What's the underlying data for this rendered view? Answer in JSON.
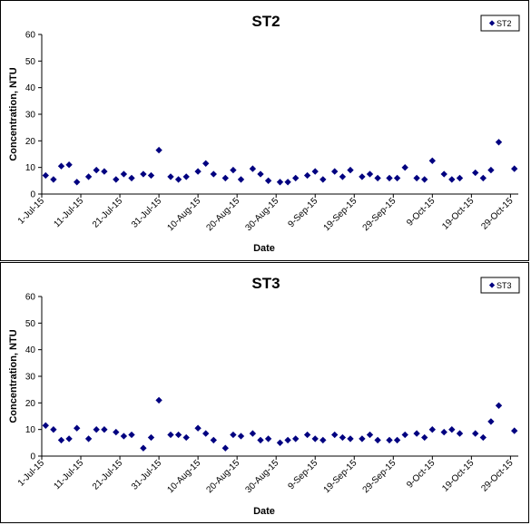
{
  "chart_data": [
    {
      "type": "scatter",
      "title": "ST2",
      "xlabel": "Date",
      "ylabel": "Concentration, NTU",
      "ylim": [
        0,
        60
      ],
      "yticks": [
        "0",
        "10",
        "20",
        "30",
        "40",
        "50",
        "60"
      ],
      "xlim": [
        "2015-07-01",
        "2015-10-31"
      ],
      "xticks": [
        "1-Jul-15",
        "11-Jul-15",
        "21-Jul-15",
        "31-Jul-15",
        "10-Aug-15",
        "20-Aug-15",
        "30-Aug-15",
        "9-Sep-15",
        "19-Sep-15",
        "29-Sep-15",
        "9-Oct-15",
        "19-Oct-15",
        "29-Oct-15"
      ],
      "grid": false,
      "legend": "top-right",
      "marker_color": "#000080",
      "series": [
        {
          "name": "ST2",
          "points": [
            {
              "x": "2015-07-02",
              "y": 7
            },
            {
              "x": "2015-07-04",
              "y": 5.5
            },
            {
              "x": "2015-07-06",
              "y": 10.5
            },
            {
              "x": "2015-07-08",
              "y": 11
            },
            {
              "x": "2015-07-10",
              "y": 4.5
            },
            {
              "x": "2015-07-13",
              "y": 6.5
            },
            {
              "x": "2015-07-15",
              "y": 9
            },
            {
              "x": "2015-07-17",
              "y": 8.5
            },
            {
              "x": "2015-07-20",
              "y": 5.5
            },
            {
              "x": "2015-07-22",
              "y": 7.5
            },
            {
              "x": "2015-07-24",
              "y": 6
            },
            {
              "x": "2015-07-27",
              "y": 7.5
            },
            {
              "x": "2015-07-29",
              "y": 7
            },
            {
              "x": "2015-07-31",
              "y": 16.5
            },
            {
              "x": "2015-08-03",
              "y": 6.5
            },
            {
              "x": "2015-08-05",
              "y": 5.5
            },
            {
              "x": "2015-08-07",
              "y": 6.5
            },
            {
              "x": "2015-08-10",
              "y": 8.5
            },
            {
              "x": "2015-08-12",
              "y": 11.5
            },
            {
              "x": "2015-08-14",
              "y": 7.5
            },
            {
              "x": "2015-08-17",
              "y": 6
            },
            {
              "x": "2015-08-19",
              "y": 9
            },
            {
              "x": "2015-08-21",
              "y": 5.5
            },
            {
              "x": "2015-08-24",
              "y": 9.5
            },
            {
              "x": "2015-08-26",
              "y": 7.5
            },
            {
              "x": "2015-08-28",
              "y": 5
            },
            {
              "x": "2015-08-31",
              "y": 4.5
            },
            {
              "x": "2015-09-02",
              "y": 4.5
            },
            {
              "x": "2015-09-04",
              "y": 6
            },
            {
              "x": "2015-09-07",
              "y": 7
            },
            {
              "x": "2015-09-09",
              "y": 8.5
            },
            {
              "x": "2015-09-11",
              "y": 5.5
            },
            {
              "x": "2015-09-14",
              "y": 8.5
            },
            {
              "x": "2015-09-16",
              "y": 6.5
            },
            {
              "x": "2015-09-18",
              "y": 9
            },
            {
              "x": "2015-09-21",
              "y": 6.5
            },
            {
              "x": "2015-09-23",
              "y": 7.5
            },
            {
              "x": "2015-09-25",
              "y": 6
            },
            {
              "x": "2015-09-28",
              "y": 6
            },
            {
              "x": "2015-09-30",
              "y": 6
            },
            {
              "x": "2015-10-02",
              "y": 10
            },
            {
              "x": "2015-10-05",
              "y": 6
            },
            {
              "x": "2015-10-07",
              "y": 5.5
            },
            {
              "x": "2015-10-09",
              "y": 12.5
            },
            {
              "x": "2015-10-12",
              "y": 7.5
            },
            {
              "x": "2015-10-14",
              "y": 5.5
            },
            {
              "x": "2015-10-16",
              "y": 6
            },
            {
              "x": "2015-10-20",
              "y": 8
            },
            {
              "x": "2015-10-22",
              "y": 6
            },
            {
              "x": "2015-10-24",
              "y": 9
            },
            {
              "x": "2015-10-26",
              "y": 19.5
            },
            {
              "x": "2015-10-30",
              "y": 9.5
            }
          ]
        }
      ]
    },
    {
      "type": "scatter",
      "title": "ST3",
      "xlabel": "Date",
      "ylabel": "Concentration, NTU",
      "ylim": [
        0,
        60
      ],
      "yticks": [
        "0",
        "10",
        "20",
        "30",
        "40",
        "50",
        "60"
      ],
      "xlim": [
        "2015-07-01",
        "2015-10-31"
      ],
      "xticks": [
        "1-Jul-15",
        "11-Jul-15",
        "21-Jul-15",
        "31-Jul-15",
        "10-Aug-15",
        "20-Aug-15",
        "30-Aug-15",
        "9-Sep-15",
        "19-Sep-15",
        "29-Sep-15",
        "9-Oct-15",
        "19-Oct-15",
        "29-Oct-15"
      ],
      "grid": false,
      "legend": "top-right",
      "marker_color": "#000080",
      "series": [
        {
          "name": "ST3",
          "points": [
            {
              "x": "2015-07-02",
              "y": 11.5
            },
            {
              "x": "2015-07-04",
              "y": 10
            },
            {
              "x": "2015-07-06",
              "y": 6
            },
            {
              "x": "2015-07-08",
              "y": 6.5
            },
            {
              "x": "2015-07-10",
              "y": 10.5
            },
            {
              "x": "2015-07-13",
              "y": 6.5
            },
            {
              "x": "2015-07-15",
              "y": 10
            },
            {
              "x": "2015-07-17",
              "y": 10
            },
            {
              "x": "2015-07-20",
              "y": 9
            },
            {
              "x": "2015-07-22",
              "y": 7.5
            },
            {
              "x": "2015-07-24",
              "y": 8
            },
            {
              "x": "2015-07-27",
              "y": 3
            },
            {
              "x": "2015-07-29",
              "y": 7
            },
            {
              "x": "2015-07-31",
              "y": 21
            },
            {
              "x": "2015-08-03",
              "y": 8
            },
            {
              "x": "2015-08-05",
              "y": 8
            },
            {
              "x": "2015-08-07",
              "y": 7
            },
            {
              "x": "2015-08-10",
              "y": 10.5
            },
            {
              "x": "2015-08-12",
              "y": 8.5
            },
            {
              "x": "2015-08-14",
              "y": 6
            },
            {
              "x": "2015-08-17",
              "y": 3
            },
            {
              "x": "2015-08-19",
              "y": 8
            },
            {
              "x": "2015-08-21",
              "y": 7.5
            },
            {
              "x": "2015-08-24",
              "y": 8.5
            },
            {
              "x": "2015-08-26",
              "y": 6
            },
            {
              "x": "2015-08-28",
              "y": 6.5
            },
            {
              "x": "2015-08-31",
              "y": 5
            },
            {
              "x": "2015-09-02",
              "y": 6
            },
            {
              "x": "2015-09-04",
              "y": 6.5
            },
            {
              "x": "2015-09-07",
              "y": 8
            },
            {
              "x": "2015-09-09",
              "y": 6.5
            },
            {
              "x": "2015-09-11",
              "y": 6
            },
            {
              "x": "2015-09-14",
              "y": 8
            },
            {
              "x": "2015-09-16",
              "y": 7
            },
            {
              "x": "2015-09-18",
              "y": 6.5
            },
            {
              "x": "2015-09-21",
              "y": 6.5
            },
            {
              "x": "2015-09-23",
              "y": 8
            },
            {
              "x": "2015-09-25",
              "y": 6
            },
            {
              "x": "2015-09-28",
              "y": 6
            },
            {
              "x": "2015-09-30",
              "y": 6
            },
            {
              "x": "2015-10-02",
              "y": 8
            },
            {
              "x": "2015-10-05",
              "y": 8.5
            },
            {
              "x": "2015-10-07",
              "y": 7
            },
            {
              "x": "2015-10-09",
              "y": 10
            },
            {
              "x": "2015-10-12",
              "y": 9
            },
            {
              "x": "2015-10-14",
              "y": 10
            },
            {
              "x": "2015-10-16",
              "y": 8.5
            },
            {
              "x": "2015-10-20",
              "y": 8.5
            },
            {
              "x": "2015-10-22",
              "y": 7
            },
            {
              "x": "2015-10-24",
              "y": 13
            },
            {
              "x": "2015-10-26",
              "y": 19
            },
            {
              "x": "2015-10-30",
              "y": 9.5
            }
          ]
        }
      ]
    }
  ]
}
